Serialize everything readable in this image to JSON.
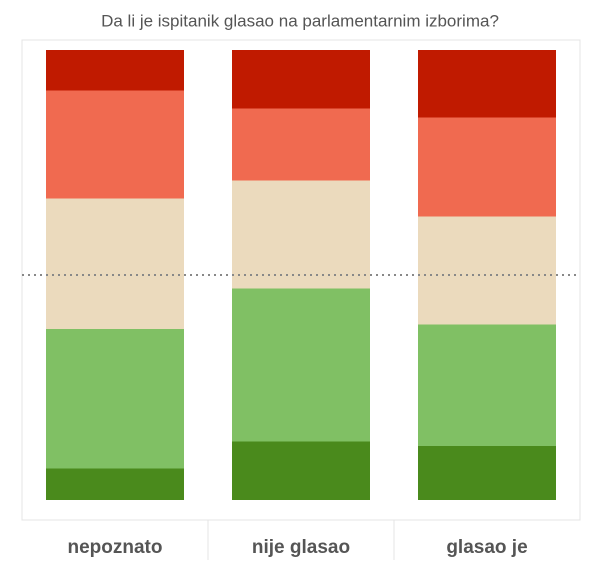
{
  "chart_data": {
    "type": "bar",
    "stacked": true,
    "title": "Da li je ispitanik glasao na parlamentarnim izborima?",
    "categories": [
      "nepoznato",
      "nije glasao",
      "glasao je"
    ],
    "series": [
      {
        "color": "#4a8a1c",
        "values": [
          7,
          13,
          12
        ]
      },
      {
        "color": "#80c064",
        "values": [
          31,
          34,
          27
        ]
      },
      {
        "color": "#ebdabd",
        "values": [
          29,
          24,
          24
        ]
      },
      {
        "color": "#f06a50",
        "values": [
          24,
          16,
          22
        ]
      },
      {
        "color": "#c01a00",
        "values": [
          9,
          13,
          15
        ]
      }
    ],
    "ylim": [
      0,
      100
    ],
    "reference_line": 50
  }
}
